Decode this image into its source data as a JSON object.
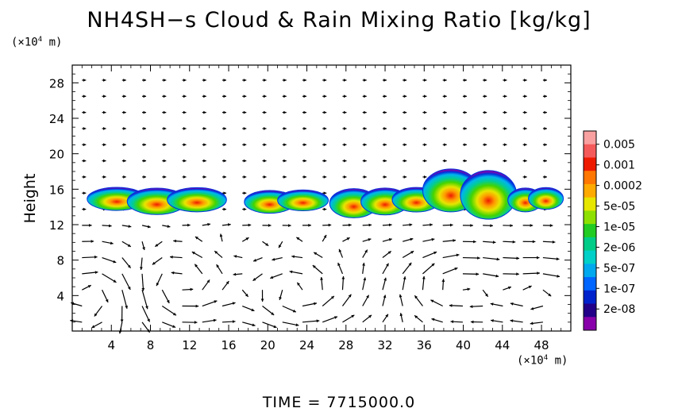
{
  "chart_data": {
    "type": "heatmap",
    "title": "NH4SH−s Cloud & Rain Mixing Ratio [kg/kg]",
    "ylabel": "Height",
    "xunit": "(×10",
    "yunit": "(×10",
    "unit_exp": "4",
    "unit_tail": " m)",
    "footer": "TIME = 7715000.0",
    "xlim": [
      0,
      51
    ],
    "ylim": [
      0,
      30
    ],
    "xticks": [
      4,
      8,
      12,
      16,
      20,
      24,
      28,
      32,
      36,
      40,
      44,
      48
    ],
    "yticks": [
      4,
      8,
      12,
      16,
      20,
      24,
      28
    ],
    "grid": false,
    "legend_position": "right",
    "colorbar": {
      "levels": [
        "0.005",
        "0.001",
        "0.0002",
        "5e-05",
        "1e-05",
        "2e-06",
        "5e-07",
        "1e-07",
        "2e-08"
      ],
      "colors": [
        "#f9a0a0",
        "#f55a5a",
        "#ee1a00",
        "#ff7700",
        "#ffaa00",
        "#e6e600",
        "#8ee000",
        "#22cc22",
        "#00cc88",
        "#00d0c8",
        "#00a8ee",
        "#0066ff",
        "#0022cc",
        "#220088",
        "#8800aa"
      ]
    },
    "cloud_regions": [
      {
        "x_range": [
          2.5,
          14.8
        ],
        "z_range": [
          13.2,
          16.3
        ],
        "peak": "0.0002"
      },
      {
        "x_range": [
          18.5,
          25.3
        ],
        "z_range": [
          13.2,
          16.0
        ],
        "peak": "0.0002"
      },
      {
        "x_range": [
          27.2,
          36.8
        ],
        "z_range": [
          13.0,
          16.3
        ],
        "peak": "0.0002"
      },
      {
        "x_range": [
          36.8,
          44.5
        ],
        "z_range": [
          13.0,
          18.5
        ],
        "peak": "0.0002"
      },
      {
        "x_range": [
          45.3,
          49.5
        ],
        "z_range": [
          13.5,
          16.3
        ],
        "peak": "0.0002"
      }
    ],
    "wind_field": {
      "type": "vector",
      "circulation_cells": [
        {
          "center_x": 2,
          "center_z": 4.5,
          "sense": "clockwise"
        },
        {
          "center_x": 10.5,
          "center_z": 5,
          "sense": "counterclockwise"
        },
        {
          "center_x": 23,
          "center_z": 4,
          "sense": "counterclockwise"
        },
        {
          "center_x": 39,
          "center_z": 5,
          "sense": "clockwise"
        },
        {
          "center_x": 48,
          "center_z": 4.5,
          "sense": "clockwise"
        }
      ]
    }
  }
}
